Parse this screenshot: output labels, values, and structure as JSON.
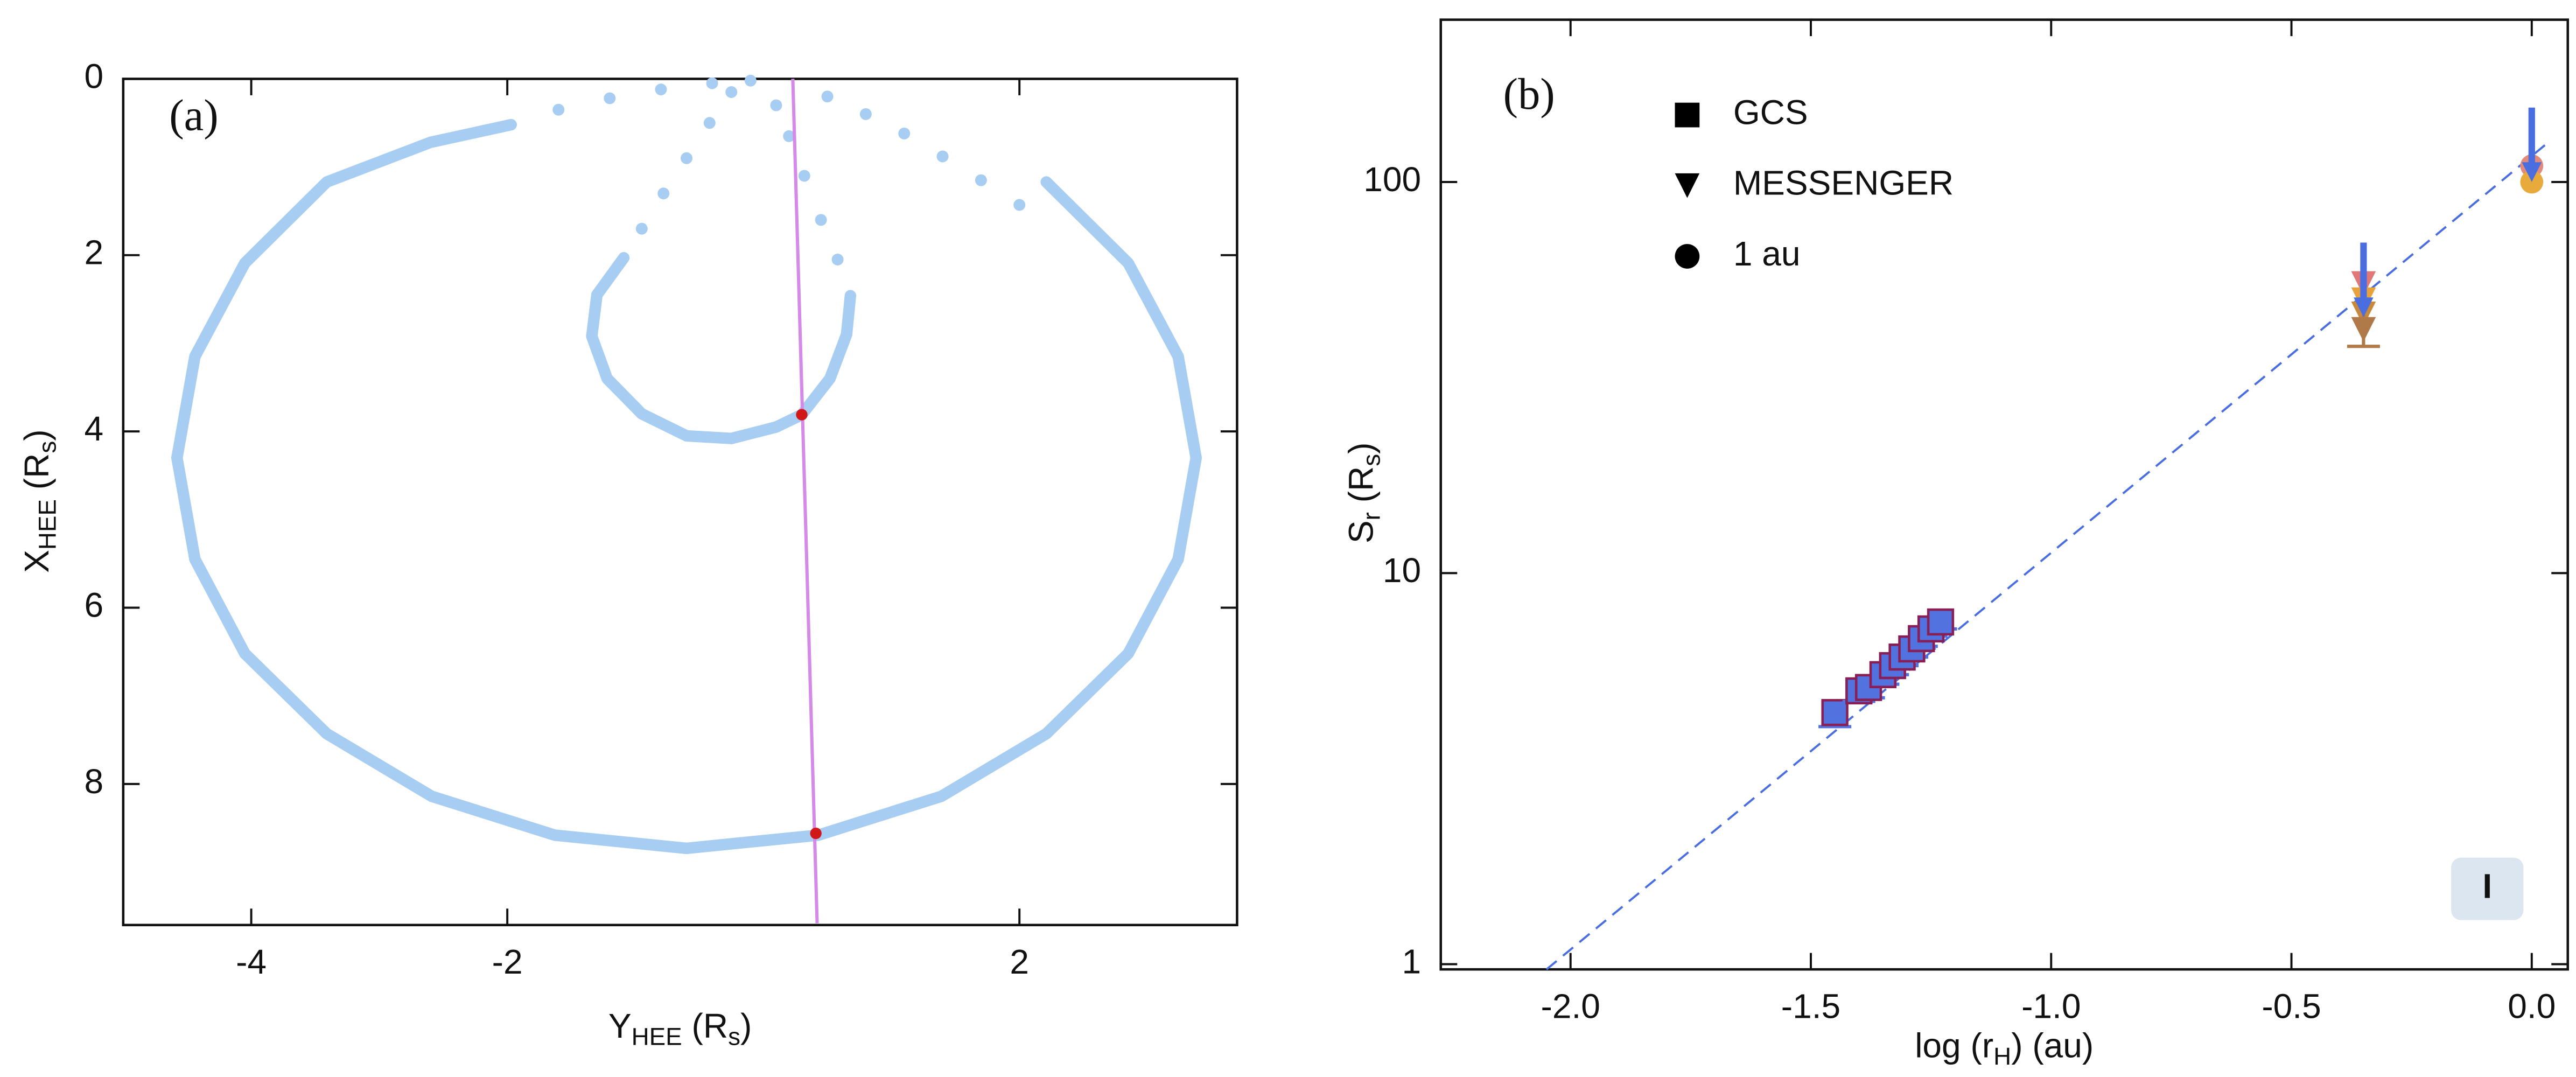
{
  "chart_data": [
    {
      "type": "scatter",
      "panel_label": "(a)",
      "xlabel": [
        "Y",
        "HEE",
        " (R",
        "s",
        ")"
      ],
      "ylabel": [
        "X",
        "HEE",
        " (R",
        "s",
        ")"
      ],
      "xlim": [
        -5.0,
        3.7
      ],
      "ylim": [
        0,
        9.6
      ],
      "yinvert": true,
      "xticks": [
        -4,
        -2,
        2
      ],
      "yticks": [
        0,
        2,
        4,
        6,
        8
      ],
      "curve_color": "#a7cdf2",
      "curves": [
        {
          "style": "solid",
          "x": [
            2.21,
            2.85,
            3.24,
            3.38,
            3.24,
            2.85,
            2.21,
            1.39,
            0.43,
            -0.6,
            -1.63,
            -2.59,
            -3.41,
            -4.05,
            -4.44,
            -4.58,
            -4.44,
            -4.05,
            -3.41,
            -2.6,
            -1.97
          ],
          "y": [
            1.17,
            2.09,
            3.15,
            4.3,
            5.45,
            6.52,
            7.43,
            8.14,
            8.58,
            8.73,
            8.58,
            8.14,
            7.43,
            6.52,
            5.45,
            4.3,
            3.15,
            2.09,
            1.17,
            0.72,
            0.52
          ]
        },
        {
          "style": "dotted",
          "x": [
            -1.6,
            -1.2,
            -0.8,
            -0.4,
            -0.1
          ],
          "y": [
            0.35,
            0.22,
            0.12,
            0.05,
            0.02
          ]
        },
        {
          "style": "dotted",
          "x": [
            0.5,
            0.8,
            1.1,
            1.4,
            1.7,
            2.0
          ],
          "y": [
            0.2,
            0.4,
            0.62,
            0.88,
            1.15,
            1.43
          ]
        },
        {
          "style": "solid",
          "x": [
            -1.09,
            -1.3,
            -1.34,
            -1.22,
            -0.95,
            -0.6,
            -0.25,
            0.1,
            0.3,
            0.52,
            0.65,
            0.68
          ],
          "y": [
            2.03,
            2.45,
            2.92,
            3.4,
            3.8,
            4.05,
            4.08,
            3.95,
            3.81,
            3.4,
            2.9,
            2.46
          ]
        },
        {
          "style": "dotted",
          "x": [
            -0.95,
            -0.78,
            -0.6,
            -0.42,
            -0.25
          ],
          "y": [
            1.7,
            1.3,
            0.9,
            0.5,
            0.15
          ]
        },
        {
          "style": "dotted",
          "x": [
            0.58,
            0.45,
            0.32,
            0.2,
            0.1
          ],
          "y": [
            2.05,
            1.6,
            1.1,
            0.65,
            0.3
          ]
        }
      ],
      "line": {
        "color": "#d48ae6",
        "x": [
          0.23,
          0.42
        ],
        "y": [
          0,
          9.58
        ]
      },
      "points": {
        "color": "#d01818",
        "x": [
          0.3,
          0.41
        ],
        "y": [
          3.81,
          8.56
        ]
      }
    },
    {
      "type": "scatter",
      "panel_label": "(b)",
      "xlabel": [
        "log (r",
        "H",
        ") (au)"
      ],
      "ylabel": [
        "S",
        "r",
        " (R",
        "s",
        ")"
      ],
      "xlim": [
        -2.27,
        0.075
      ],
      "ylim": [
        0.97,
        260
      ],
      "ylog": true,
      "xticks": [
        {
          "value": -2,
          "label": "-2.0"
        },
        -1.5,
        {
          "value": -1,
          "label": "-1.0"
        },
        -0.5,
        {
          "value": 0,
          "label": "0.0"
        }
      ],
      "yticks": [
        1,
        10,
        100
      ],
      "legend_loc": "upper left",
      "series": [
        {
          "name": "GCS",
          "marker": "square",
          "color": "#5272e0",
          "edge": "#8a1f55",
          "x": [
            -1.45,
            -1.4,
            -1.38,
            -1.35,
            -1.33,
            -1.31,
            -1.29,
            -1.27,
            -1.25,
            -1.23
          ],
          "y": [
            4.4,
            5.0,
            5.1,
            5.5,
            5.8,
            6.1,
            6.4,
            6.8,
            7.2,
            7.5
          ],
          "err": [
            0.35,
            0.3,
            0.3,
            0.3,
            0.3,
            0.3,
            0.3,
            0.3,
            0.3,
            0.3
          ]
        },
        {
          "name": "MESSENGER",
          "marker": "triangle",
          "colors": [
            "#e07878",
            "#e8a23c",
            "#c88a3a",
            "#b07a48"
          ],
          "x": [
            -0.35,
            -0.35,
            -0.35,
            -0.35
          ],
          "y": [
            55,
            50,
            46,
            42
          ],
          "err": [
            0,
            0,
            0,
            4
          ]
        },
        {
          "name": "1 au",
          "marker": "circle",
          "colors": [
            "#e28a7c",
            "#e8aa3a"
          ],
          "x": [
            0,
            0
          ],
          "y": [
            110,
            100
          ]
        }
      ],
      "arrows": [
        {
          "color": "#4a6ee0",
          "x": [
            -0.35,
            -0.35
          ],
          "y": [
            70,
            46
          ]
        },
        {
          "color": "#4a6ee0",
          "x": [
            0,
            0
          ],
          "y": [
            155,
            102
          ]
        }
      ],
      "fit": {
        "color": "#4a6ee0",
        "x": [
          -2.05,
          0.03
        ],
        "y": [
          0.97,
          125
        ]
      },
      "badge": "I"
    }
  ]
}
